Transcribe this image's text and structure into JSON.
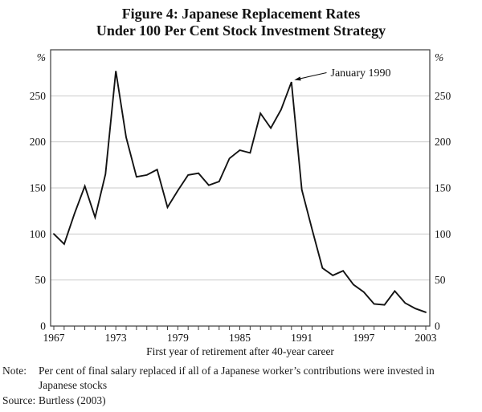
{
  "title_line1": "Figure 4: Japanese Replacement Rates",
  "title_line2": "Under 100 Per Cent Stock Investment Strategy",
  "note": {
    "label": "Note:",
    "line1": "Per cent of final salary replaced if all of a Japanese worker’s contributions were invested in",
    "line2": "Japanese stocks"
  },
  "source": {
    "label": "Source:",
    "text": "Burtless (2003)"
  },
  "chart_data": {
    "type": "line",
    "title": "Figure 4: Japanese Replacement Rates Under 100 Per Cent Stock Investment Strategy",
    "xlabel": "First year of retirement after 40-year career",
    "ylabel": "%",
    "y_unit_label": "%",
    "x": [
      1967,
      1968,
      1969,
      1970,
      1971,
      1972,
      1973,
      1974,
      1975,
      1976,
      1977,
      1978,
      1979,
      1980,
      1981,
      1982,
      1983,
      1984,
      1985,
      1986,
      1987,
      1988,
      1989,
      1990,
      1991,
      1992,
      1993,
      1994,
      1995,
      1996,
      1997,
      1998,
      1999,
      2000,
      2001,
      2002,
      2003
    ],
    "values": [
      100,
      89,
      122,
      152,
      118,
      165,
      277,
      205,
      162,
      164,
      170,
      129,
      147,
      164,
      166,
      153,
      157,
      182,
      191,
      188,
      231,
      215,
      235,
      265,
      148,
      105,
      63,
      55,
      60,
      45,
      37,
      24,
      23,
      38,
      25,
      19,
      15
    ],
    "x_tick_labels": [
      "1967",
      "1973",
      "1979",
      "1985",
      "1991",
      "1997",
      "2003"
    ],
    "y_ticks": [
      0,
      50,
      100,
      150,
      200,
      250
    ],
    "ylim": [
      0,
      300
    ],
    "grid": true,
    "legend": "none",
    "annotation": {
      "text": "January 1990",
      "target_x": 1990,
      "target_y": 265
    },
    "line_color": "#131313",
    "grid_color": "#c9c9c9",
    "axis_color": "#3d3d3d",
    "text_color": "#131313"
  }
}
